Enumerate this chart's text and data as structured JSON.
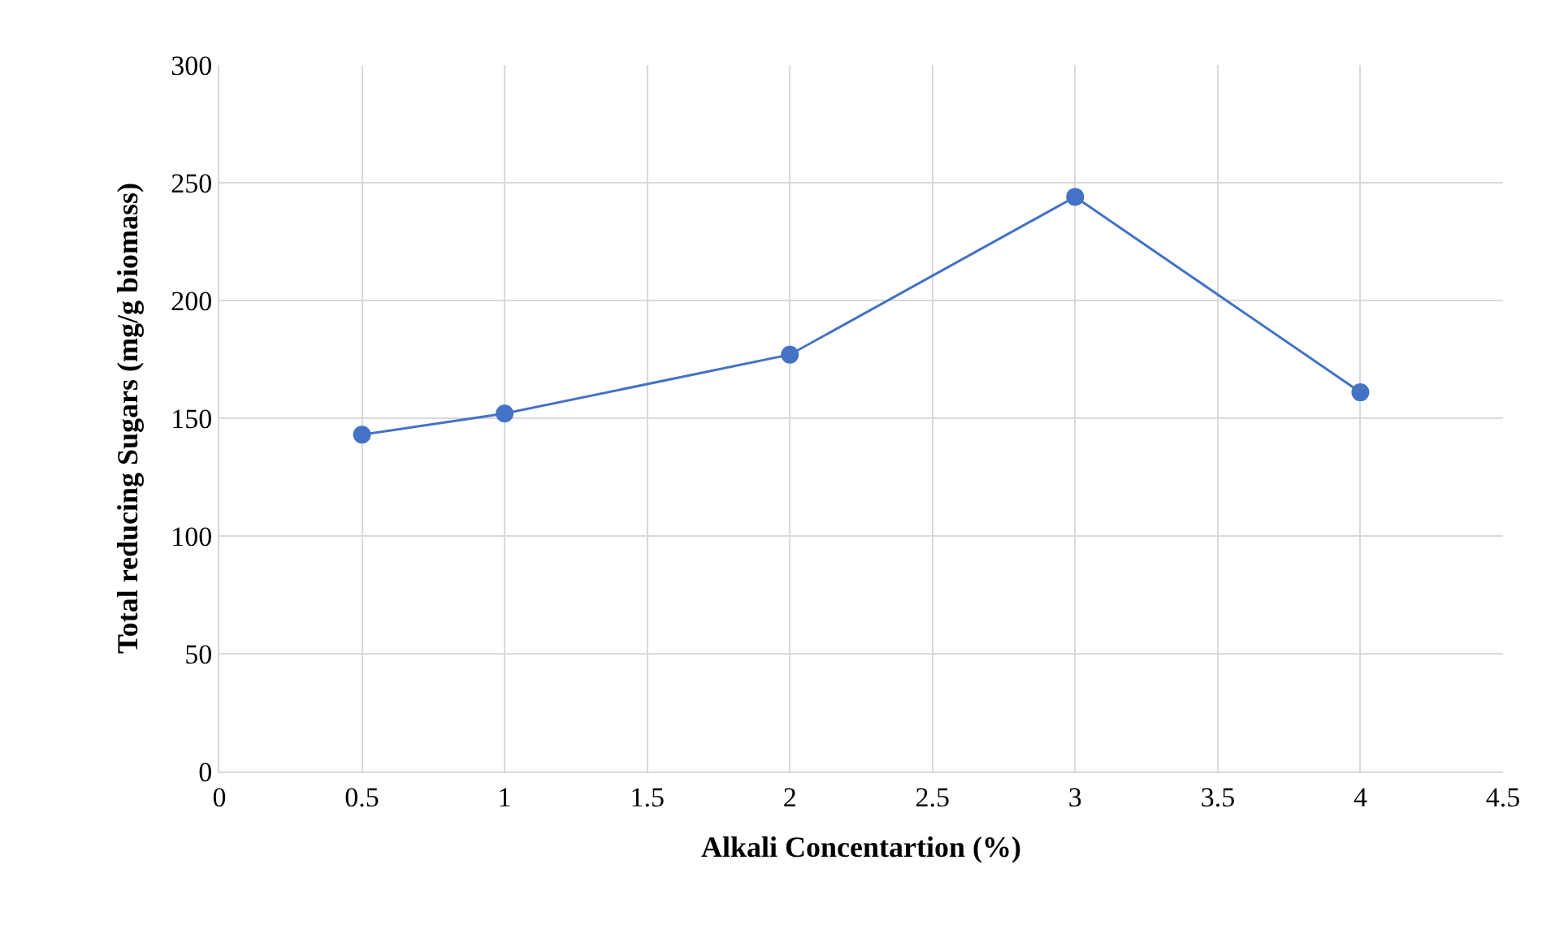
{
  "chart_data": {
    "type": "line",
    "xlabel": "Alkali Concentartion (%)",
    "ylabel": "Total reducing Sugars (mg/g biomass)",
    "x": [
      0.5,
      1,
      2,
      3,
      4
    ],
    "series": [
      {
        "color": "#4472c4",
        "values": [
          143,
          152,
          177,
          244,
          161
        ]
      }
    ],
    "xlim": [
      0,
      4.5
    ],
    "xticks": [
      0,
      0.5,
      1,
      1.5,
      2,
      2.5,
      3,
      3.5,
      4,
      4.5
    ],
    "ylim": [
      0,
      300
    ],
    "yticks": [
      0,
      50,
      100,
      150,
      200,
      250,
      300
    ],
    "grid": true,
    "marker": "circle",
    "line_style": "solid",
    "legend": false
  }
}
